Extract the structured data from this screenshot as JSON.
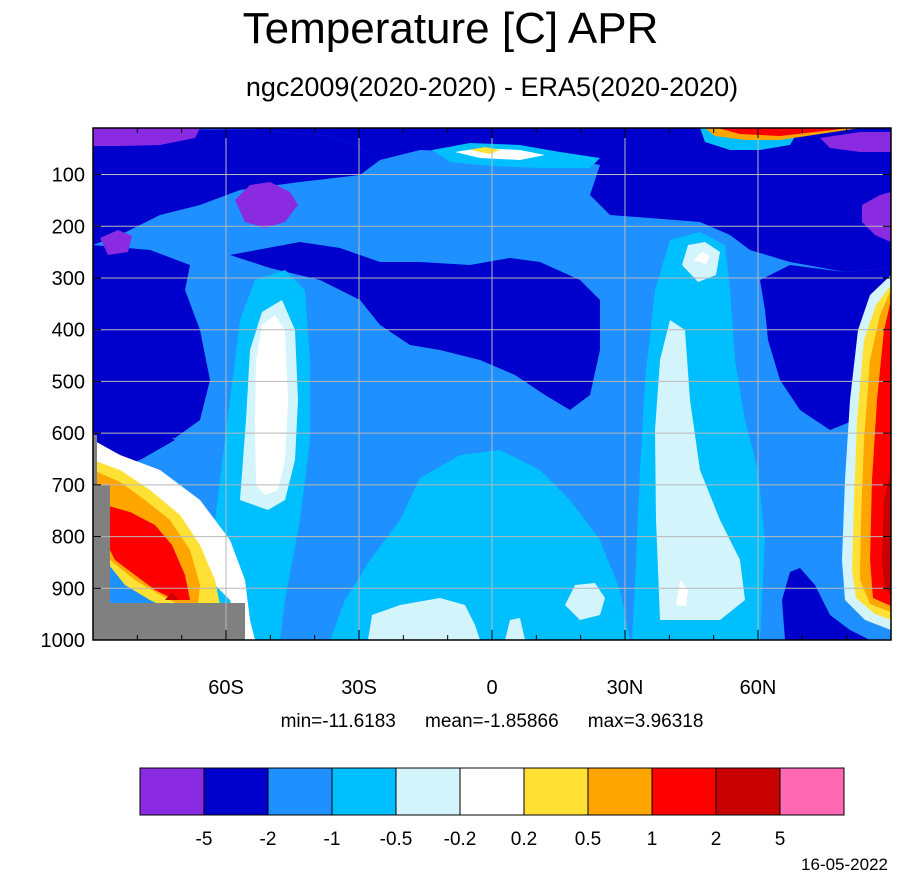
{
  "chart_data": {
    "type": "heatmap",
    "title": "Temperature [C] APR",
    "subtitle": "ngc2009(2020-2020) - ERA5(2020-2020)",
    "x_ticks": [
      "60S",
      "30S",
      "0",
      "30N",
      "60N"
    ],
    "x_tick_values": [
      -60,
      -30,
      0,
      30,
      60
    ],
    "xlim": [
      -90,
      90
    ],
    "y_ticks": [
      "100",
      "200",
      "300",
      "400",
      "500",
      "600",
      "700",
      "800",
      "900",
      "1000"
    ],
    "y_tick_values": [
      100,
      200,
      300,
      400,
      500,
      600,
      700,
      800,
      900,
      1000
    ],
    "ylim": [
      1000,
      10
    ],
    "grid": true,
    "stats": {
      "min_label": "min=-11.6183",
      "mean_label": "mean=-1.85866",
      "max_label": "max=3.96318"
    },
    "min": -11.6183,
    "mean": -1.85866,
    "max": 3.96318,
    "colorbar_levels": [
      "-5",
      "-2",
      "-1",
      "-0.5",
      "-0.2",
      "0.2",
      "0.5",
      "1",
      "2",
      "5"
    ],
    "colorbar_colors": [
      "#8a2be2",
      "#0000cd",
      "#1e90ff",
      "#00bfff",
      "#d4f4fc",
      "#ffffff",
      "#ffe135",
      "#ffa500",
      "#ff0000",
      "#c80000",
      "#ff69b4"
    ],
    "missing_color": "#808080",
    "date": "16-05-2022"
  }
}
